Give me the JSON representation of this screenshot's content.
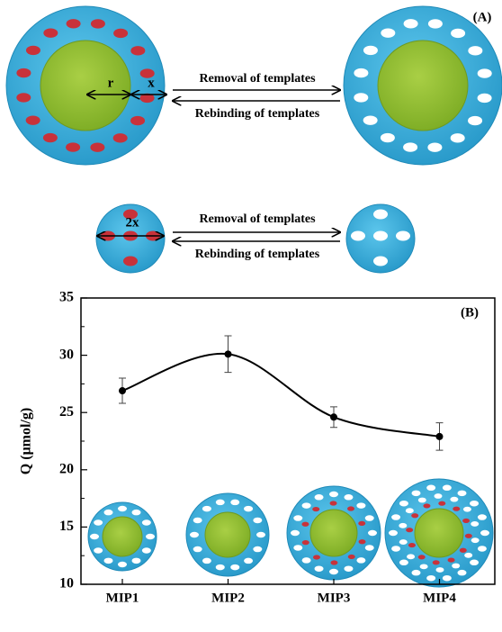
{
  "panel_a": {
    "label": "(A)",
    "r_label": "r",
    "x_label": "x",
    "top_removal": "Removal  of templates",
    "top_rebinding": "Rebinding of templates",
    "small_label": "2x",
    "bottom_removal": "Removal  of templates",
    "bottom_rebinding": "Rebinding of templates"
  },
  "chart_data": {
    "type": "line",
    "label": "(B)",
    "y_label": "Q (μmol/g)",
    "categories": [
      "MIP1",
      "MIP2",
      "MIP3",
      "MIP4"
    ],
    "values": [
      26.9,
      30.1,
      24.6,
      22.9
    ],
    "errors": [
      1.1,
      1.6,
      0.9,
      1.2
    ],
    "color": "#000000",
    "ylim": [
      10,
      35
    ],
    "yticks": [
      10,
      15,
      20,
      25,
      30,
      35
    ]
  }
}
